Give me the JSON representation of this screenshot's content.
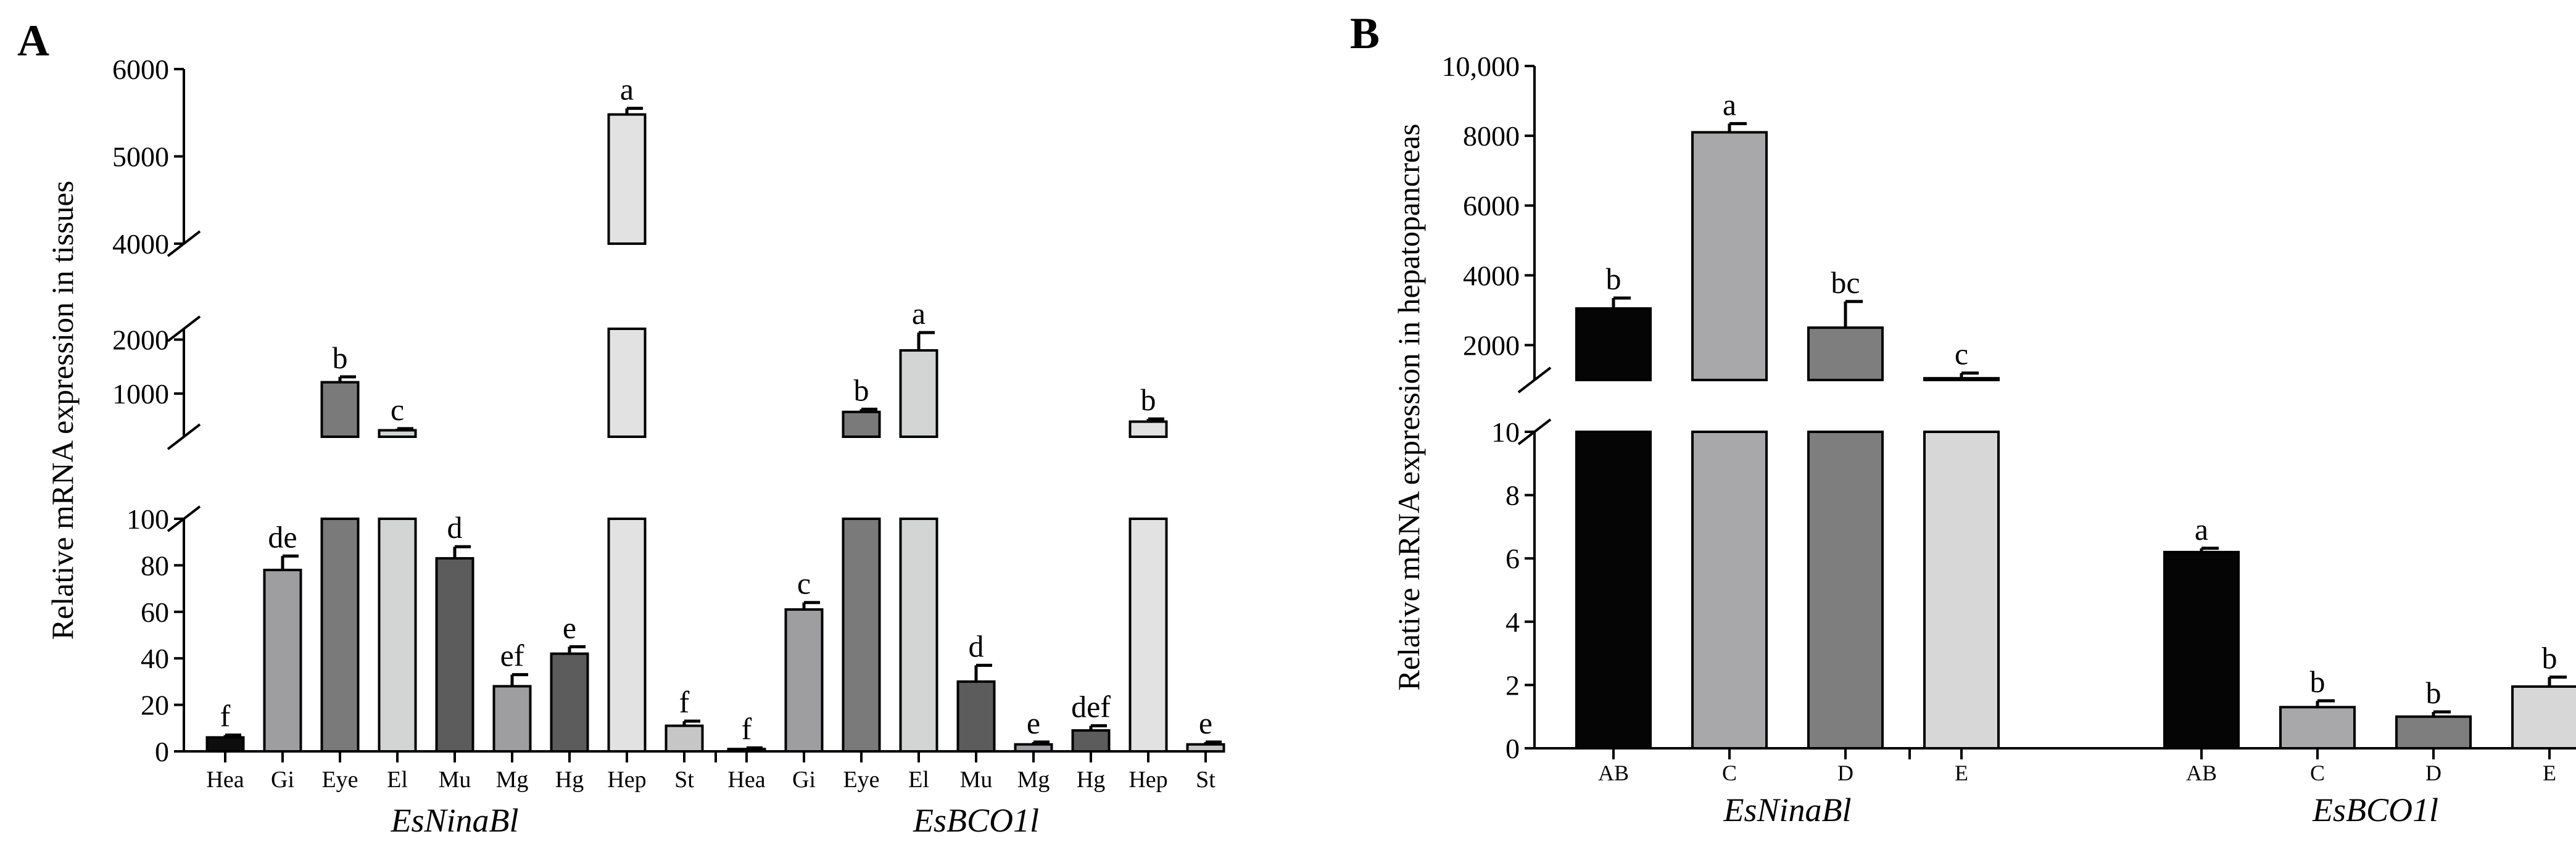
{
  "chart_data": [
    {
      "panel": "A",
      "type": "bar",
      "ylabel": "Relative mRNA expression in tissues",
      "axis_break": true,
      "segments": [
        {
          "range": [
            0,
            100
          ],
          "ticks": [
            0,
            20,
            40,
            60,
            80,
            100
          ]
        },
        {
          "range": [
            200,
            2200
          ],
          "ticks": [
            1000,
            2000
          ]
        },
        {
          "range": [
            4000,
            6000
          ],
          "ticks": [
            4000,
            5000,
            6000
          ]
        }
      ],
      "groups": [
        {
          "name": "EsNinaBl",
          "categories": [
            "Hea",
            "Gi",
            "Eye",
            "El",
            "Mu",
            "Mg",
            "Hg",
            "Hep",
            "St"
          ],
          "values": [
            6,
            78,
            1210,
            320,
            83,
            28,
            42,
            5480,
            11
          ],
          "errors": [
            1,
            6,
            100,
            30,
            5,
            5,
            3,
            70,
            2
          ],
          "letters": [
            "f",
            "de",
            "b",
            "c",
            "d",
            "ef",
            "e",
            "a",
            "f"
          ]
        },
        {
          "name": "EsBCO1l",
          "categories": [
            "Hea",
            "Gi",
            "Eye",
            "El",
            "Mu",
            "Mg",
            "Hg",
            "Hep",
            "St"
          ],
          "values": [
            1,
            61,
            660,
            1800,
            30,
            3,
            9,
            480,
            3
          ],
          "errors": [
            0.5,
            3,
            50,
            330,
            7,
            1,
            2,
            50,
            1
          ],
          "letters": [
            "f",
            "c",
            "b",
            "a",
            "d",
            "e",
            "def",
            "b",
            "e"
          ]
        }
      ],
      "colors": [
        "#0d0d0d",
        "#9e9ea0",
        "#7a7a7a",
        "#d3d4d4",
        "#5c5c5c",
        "#9e9ea0",
        "#5c5c5c",
        "#e2e2e2",
        "#c6c6c6"
      ]
    },
    {
      "panel": "B",
      "type": "bar",
      "ylabel": "Relative mRNA expression in hepatopancreas",
      "axis_break": true,
      "segments": [
        {
          "range": [
            0,
            10
          ],
          "ticks": [
            0,
            2,
            4,
            6,
            8,
            10
          ]
        },
        {
          "range": [
            1000,
            10000
          ],
          "ticks": [
            2000,
            4000,
            6000,
            8000,
            10000
          ],
          "tick_labels": [
            "2000",
            "4000",
            "6000",
            "8000",
            "10,000"
          ]
        }
      ],
      "groups": [
        {
          "name": "EsNinaBl",
          "categories": [
            "AB",
            "C",
            "D",
            "E"
          ],
          "values": [
            3050,
            8100,
            2500,
            1050
          ],
          "errors": [
            300,
            250,
            750,
            150
          ],
          "letters": [
            "b",
            "a",
            "bc",
            "c"
          ]
        },
        {
          "name": "EsBCO1l",
          "categories": [
            "AB",
            "C",
            "D",
            "E"
          ],
          "values": [
            6.2,
            1.3,
            1.0,
            1.95
          ],
          "errors": [
            0.12,
            0.2,
            0.15,
            0.3
          ],
          "letters": [
            "a",
            "b",
            "b",
            "b"
          ]
        }
      ],
      "colors": [
        "#050505",
        "#a8a8aa",
        "#7e7e7e",
        "#d7d7d7"
      ]
    }
  ]
}
